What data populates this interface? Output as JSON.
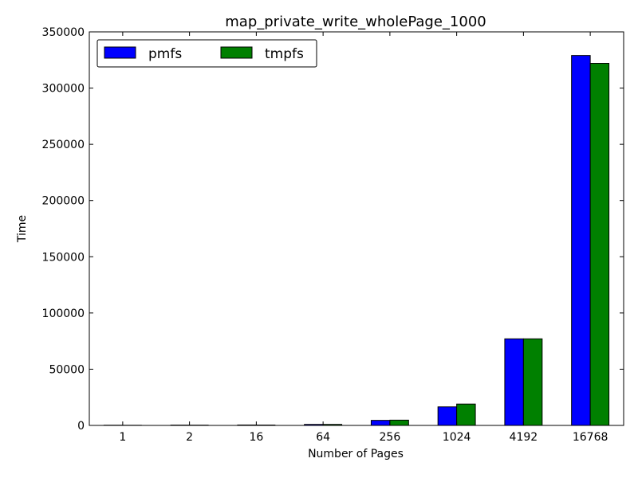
{
  "chart_data": {
    "type": "bar",
    "title": "map_private_write_wholePage_1000",
    "xlabel": "Number of Pages",
    "ylabel": "Time",
    "categories": [
      "1",
      "2",
      "16",
      "64",
      "256",
      "1024",
      "4192",
      "16768"
    ],
    "series": [
      {
        "name": "pmfs",
        "color": "#0000ff",
        "values": [
          200,
          300,
          400,
          900,
          4500,
          16500,
          77000,
          329000
        ]
      },
      {
        "name": "tmpfs",
        "color": "#008000",
        "values": [
          150,
          250,
          350,
          900,
          4700,
          19000,
          77000,
          322000
        ]
      }
    ],
    "ylim": [
      0,
      350000
    ],
    "yticks": [
      0,
      50000,
      100000,
      150000,
      200000,
      250000,
      300000,
      350000
    ],
    "ytick_labels": [
      "0",
      "50000",
      "100000",
      "150000",
      "200000",
      "250000",
      "300000",
      "350000"
    ],
    "legend_position": "top-left",
    "grid": false
  }
}
